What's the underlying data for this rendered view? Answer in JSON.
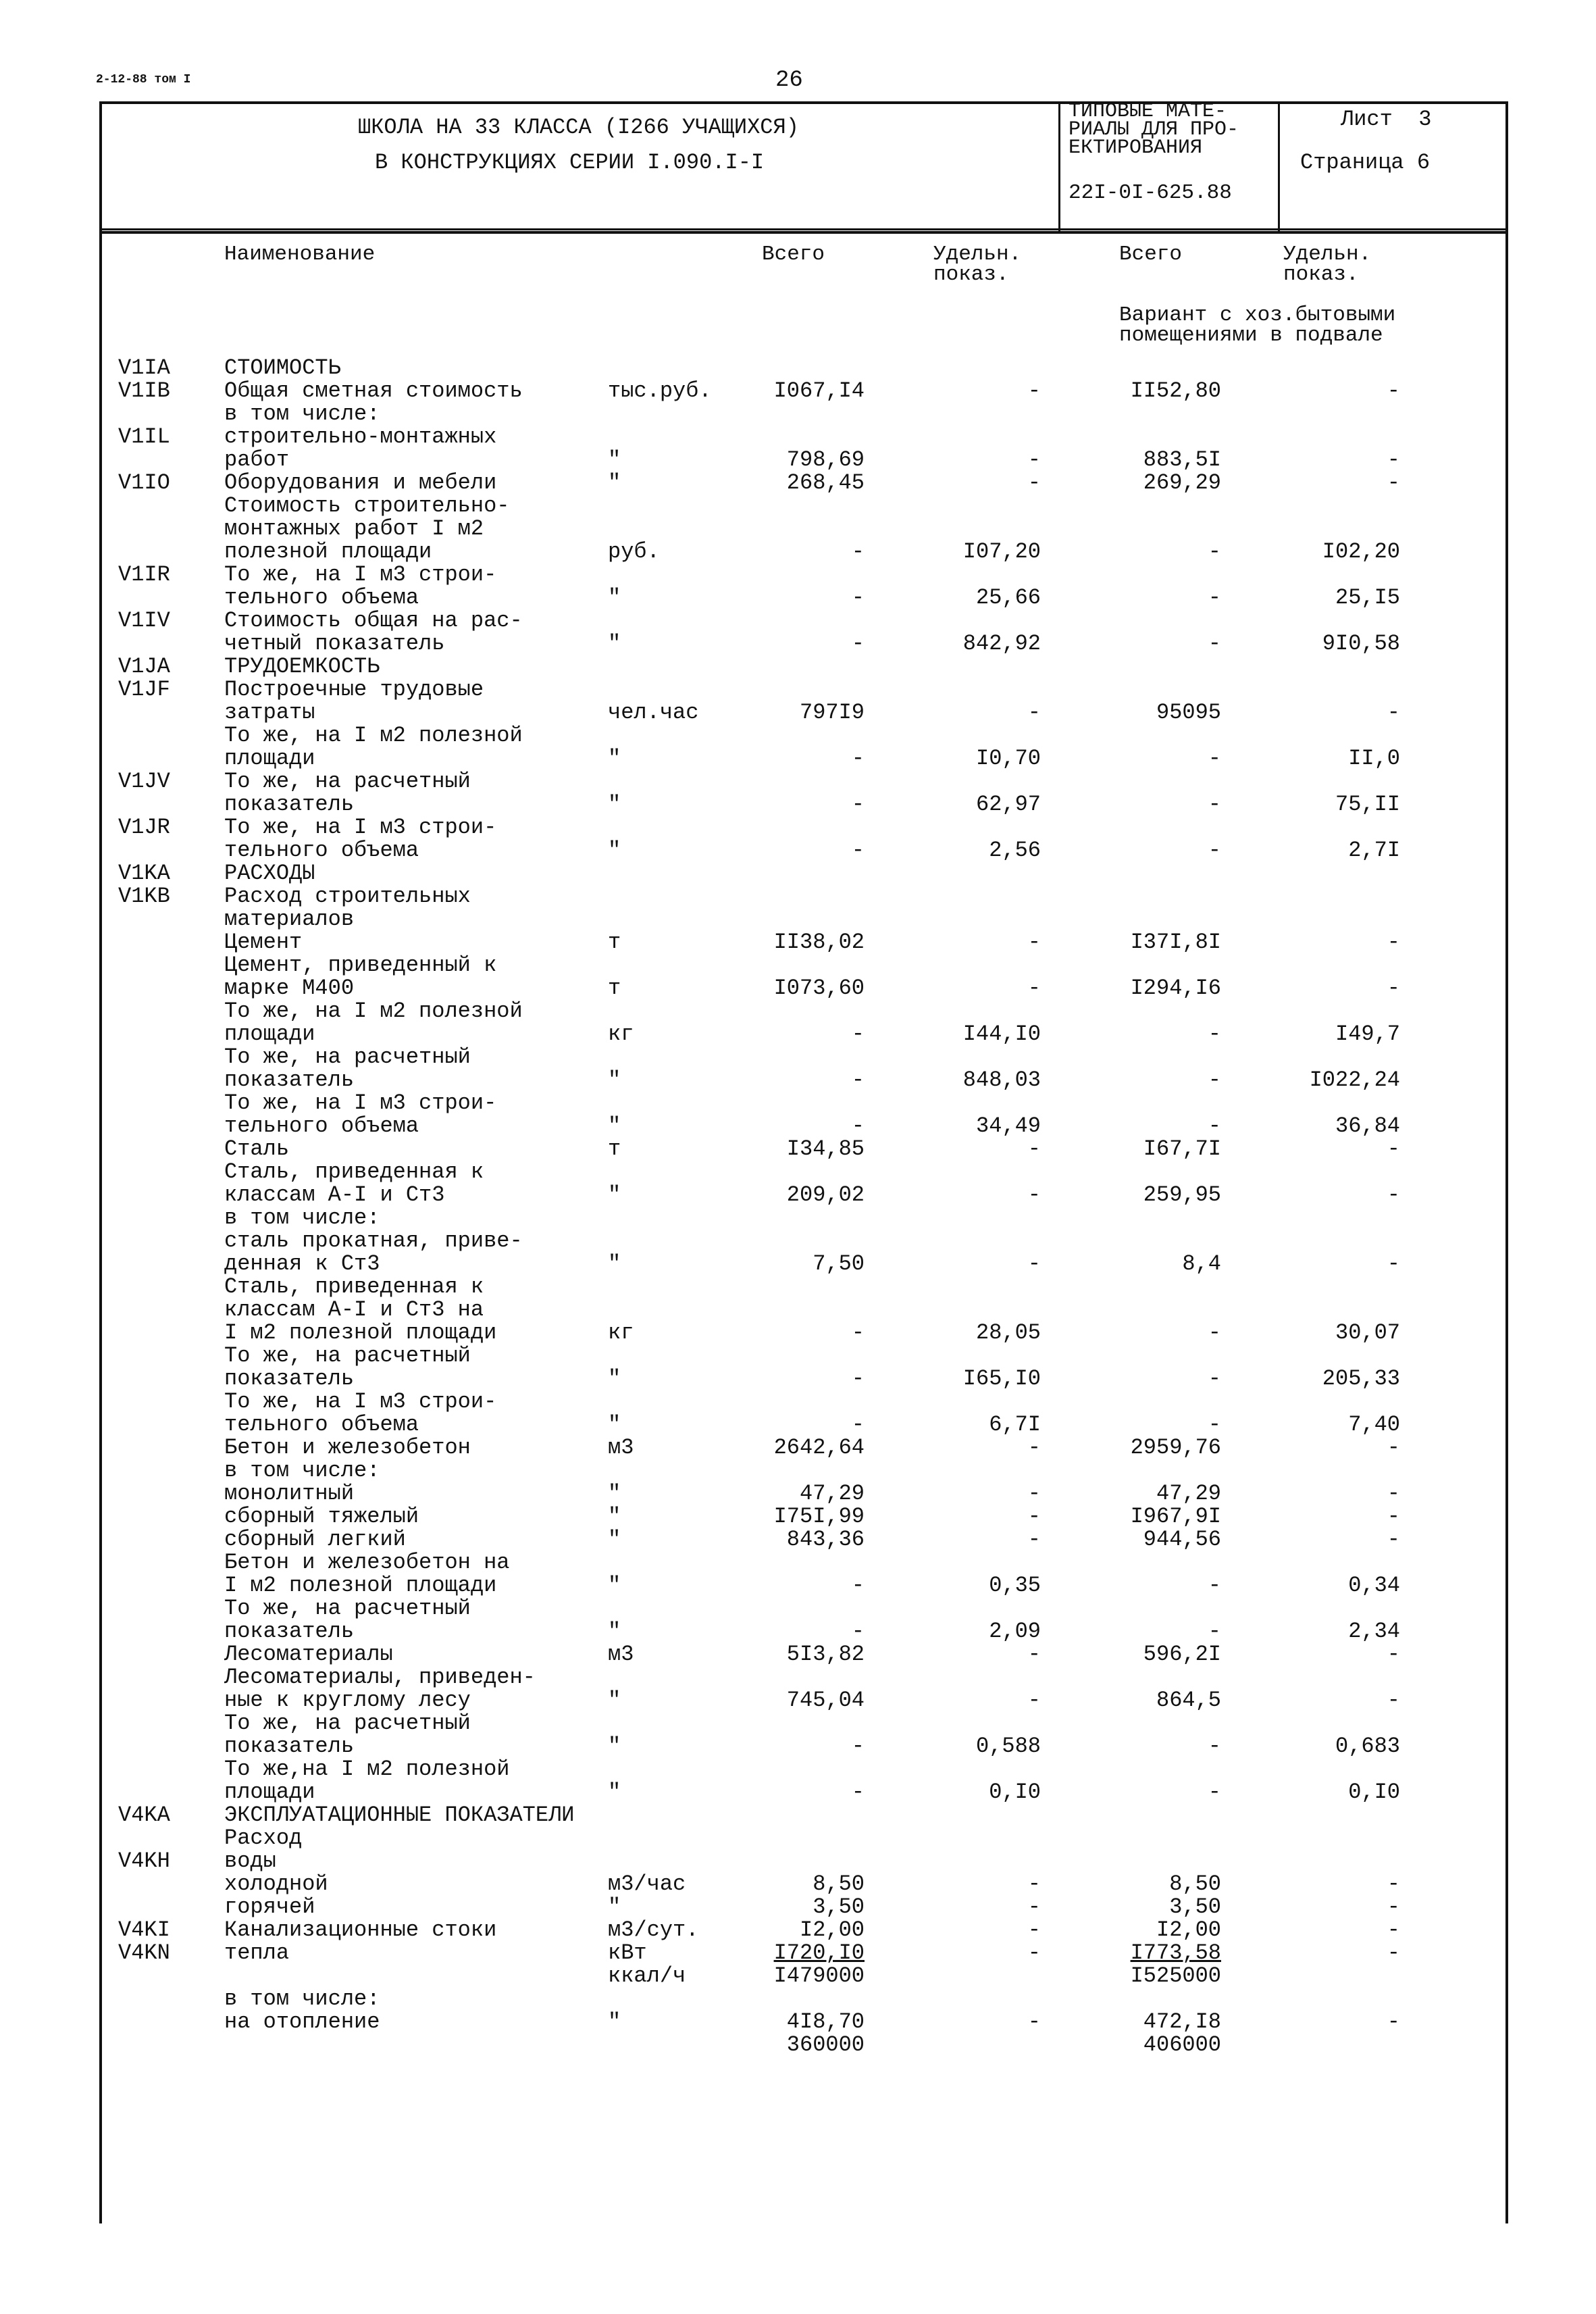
{
  "doc_ref": "2-12-88 том I",
  "page_number": "26",
  "header": {
    "title_line1": "ШКОЛА НА 33 КЛАССА (I266 УЧАЩИХСЯ)",
    "title_line2": "В КОНСТРУКЦИЯХ СЕРИИ I.090.I-I",
    "series": "ТИПОВЫЕ МАТЕ-\nРИАЛЫ ДЛЯ ПРО-\nЕКТИРОВАНИЯ",
    "series_code": "22I-0I-625.88",
    "sheet": "Лист  3",
    "page": "Страница 6"
  },
  "columns": {
    "name": "Наименование",
    "total1": "Всего",
    "spec1": "Удельн.\nпоказ.",
    "total2": "Всего",
    "spec2": "Удельн.\nпоказ.",
    "variant_note": "Вариант с хоз.бытовыми\nпомещениями в подвале"
  },
  "rows": [
    {
      "code": "V1IA",
      "name": "СТОИМОСТЬ"
    },
    {
      "code": "V1IB",
      "name": "Общая сметная стоимость",
      "unit": "тыс.руб.",
      "a": "I067,I4",
      "b": "-",
      "c": "II52,80",
      "d": "-"
    },
    {
      "name": "в том числе:"
    },
    {
      "code": "V1IL",
      "name": "строительно-монтажных"
    },
    {
      "name": "работ",
      "unit": "\"",
      "a": "798,69",
      "b": "-",
      "c": "883,5I",
      "d": "-"
    },
    {
      "code": "V1IO",
      "name": "Оборудования и мебели",
      "unit": "\"",
      "a": "268,45",
      "b": "-",
      "c": "269,29",
      "d": "-"
    },
    {
      "name": "Стоимость строительно-"
    },
    {
      "name": "монтажных работ I м2"
    },
    {
      "name": "полезной площади",
      "unit": "руб.",
      "a": "-",
      "b": "I07,20",
      "c": "-",
      "d": "I02,20"
    },
    {
      "code": "V1IR",
      "name": "То же, на I м3 строи-"
    },
    {
      "name": "тельного объема",
      "unit": "\"",
      "a": "-",
      "b": "25,66",
      "c": "-",
      "d": "25,I5"
    },
    {
      "code": "V1IV",
      "name": "Стоимость общая на рас-"
    },
    {
      "name": "четный показатель",
      "unit": "\"",
      "a": "-",
      "b": "842,92",
      "c": "-",
      "d": "9I0,58"
    },
    {
      "code": "V1JA",
      "name": "ТРУДОЕМКОСТЬ"
    },
    {
      "code": "V1JF",
      "name": "Построечные трудовые"
    },
    {
      "name": "затраты",
      "unit": "чел.час",
      "a": "797I9",
      "b": "-",
      "c": "95095",
      "d": "-"
    },
    {
      "name": "То же, на I м2 полезной"
    },
    {
      "name": "площади",
      "unit": "\"",
      "a": "-",
      "b": "I0,70",
      "c": "-",
      "d": "II,0"
    },
    {
      "code": "V1JV",
      "name": "То же, на расчетный"
    },
    {
      "name": "показатель",
      "unit": "\"",
      "a": "-",
      "b": "62,97",
      "c": "-",
      "d": "75,II"
    },
    {
      "code": "V1JR",
      "name": "То же, на I м3 строи-"
    },
    {
      "name": "тельного объема",
      "unit": "\"",
      "a": "-",
      "b": "2,56",
      "c": "-",
      "d": "2,7I"
    },
    {
      "code": "V1KA",
      "name": "РАСХОДЫ"
    },
    {
      "code": "V1KB",
      "name": "Расход строительных"
    },
    {
      "name": "материалов"
    },
    {
      "name": "Цемент",
      "unit": "т",
      "a": "II38,02",
      "b": "-",
      "c": "I37I,8I",
      "d": "-"
    },
    {
      "name": "Цемент, приведенный к"
    },
    {
      "name": "марке М400",
      "unit": "т",
      "a": "I073,60",
      "b": "-",
      "c": "I294,I6",
      "d": "-"
    },
    {
      "name": "То же, на I м2 полезной"
    },
    {
      "name": "площади",
      "unit": "кг",
      "a": "-",
      "b": "I44,I0",
      "c": "-",
      "d": "I49,7"
    },
    {
      "name": "То же, на расчетный"
    },
    {
      "name": "показатель",
      "unit": "\"",
      "a": "-",
      "b": "848,03",
      "c": "-",
      "d": "I022,24"
    },
    {
      "name": "То же, на I м3 строи-"
    },
    {
      "name": "тельного объема",
      "unit": "\"",
      "a": "-",
      "b": "34,49",
      "c": "-",
      "d": "36,84"
    },
    {
      "name": "Сталь",
      "unit": "т",
      "a": "I34,85",
      "b": "-",
      "c": "I67,7I",
      "d": "-"
    },
    {
      "name": "Сталь, приведенная к"
    },
    {
      "name": "классам А-I и Ст3",
      "unit": "\"",
      "a": "209,02",
      "b": "-",
      "c": "259,95",
      "d": "-"
    },
    {
      "name": "в том числе:"
    },
    {
      "name": "сталь прокатная, приве-"
    },
    {
      "name": "денная к Ст3",
      "unit": "\"",
      "a": "7,50",
      "b": "-",
      "c": "8,4",
      "d": "-"
    },
    {
      "name": "Сталь, приведенная к"
    },
    {
      "name": "классам А-I и Ст3    на"
    },
    {
      "name": "I м2 полезной площади",
      "unit": "кг",
      "a": "-",
      "b": "28,05",
      "c": "-",
      "d": "30,07"
    },
    {
      "name": "То же, на расчетный"
    },
    {
      "name": "показатель",
      "unit": "\"",
      "a": "-",
      "b": "I65,I0",
      "c": "-",
      "d": "205,33"
    },
    {
      "name": "То же, на I м3 строи-"
    },
    {
      "name": "тельного объема",
      "unit": "\"",
      "a": "-",
      "b": "6,7I",
      "c": "-",
      "d": "7,40"
    },
    {
      "name": "Бетон и железобетон",
      "unit": "м3",
      "a": "2642,64",
      "b": "-",
      "c": "2959,76",
      "d": "-"
    },
    {
      "name": "в том числе:"
    },
    {
      "name": "монолитный",
      "unit": "\"",
      "a": "47,29",
      "b": "-",
      "c": "47,29",
      "d": "-"
    },
    {
      "name": "сборный тяжелый",
      "unit": "\"",
      "a": "I75I,99",
      "b": "-",
      "c": "I967,9I",
      "d": "-"
    },
    {
      "name": "сборный легкий",
      "unit": "\"",
      "a": "843,36",
      "b": "-",
      "c": "944,56",
      "d": "-"
    },
    {
      "name": "Бетон и железобетон на"
    },
    {
      "name": "I м2 полезной площади",
      "unit": "\"",
      "a": "-",
      "b": "0,35",
      "c": "-",
      "d": "0,34"
    },
    {
      "name": "То же, на расчетный"
    },
    {
      "name": "показатель",
      "unit": "\"",
      "a": "-",
      "b": "2,09",
      "c": "-",
      "d": "2,34"
    },
    {
      "name": "Лесоматериалы",
      "unit": "м3",
      "a": "5I3,82",
      "b": "-",
      "c": "596,2I",
      "d": "-"
    },
    {
      "name": "Лесоматериалы, приведен-"
    },
    {
      "name": "ные к круглому лесу",
      "unit": "\"",
      "a": "745,04",
      "b": "-",
      "c": "864,5",
      "d": "-"
    },
    {
      "name": "То же, на расчетный"
    },
    {
      "name": "показатель",
      "unit": "\"",
      "a": "-",
      "b": "0,588",
      "c": "-",
      "d": "0,683"
    },
    {
      "name": "То же,на I м2 полезной"
    },
    {
      "name": "площади",
      "unit": "\"",
      "a": "-",
      "b": "0,I0",
      "c": "-",
      "d": "0,I0"
    },
    {
      "code": "V4KA",
      "name": "ЭКСПЛУАТАЦИОННЫЕ ПОКАЗАТЕЛИ"
    },
    {
      "name": "Расход"
    },
    {
      "code": "V4KH",
      "name": "воды"
    },
    {
      "name": "холодной",
      "unit": "м3/час",
      "a": "8,50",
      "b": "-",
      "c": "8,50",
      "d": "-"
    },
    {
      "name": "горячей",
      "unit": "\"",
      "a": "3,50",
      "b": "-",
      "c": "3,50",
      "d": "-"
    },
    {
      "code": "V4KI",
      "name": "Канализационные стоки",
      "unit": "м3/сут.",
      "a": "I2,00",
      "b": "-",
      "c": "I2,00",
      "d": "-"
    },
    {
      "code": "V4KN",
      "name": "тепла",
      "unit": "кВт",
      "a": "I720,I0",
      "b": "-",
      "c": "I773,58",
      "d": "-"
    },
    {
      "unit": "ккал/ч",
      "a": "I479000",
      "c": "I525000"
    },
    {
      "name": "в том числе:"
    },
    {
      "name": "на отопление",
      "unit": "\"",
      "a": "4I8,70",
      "b": "-",
      "c": "472,I8",
      "d": "-"
    },
    {
      "a": "360000",
      "c": "406000"
    }
  ]
}
